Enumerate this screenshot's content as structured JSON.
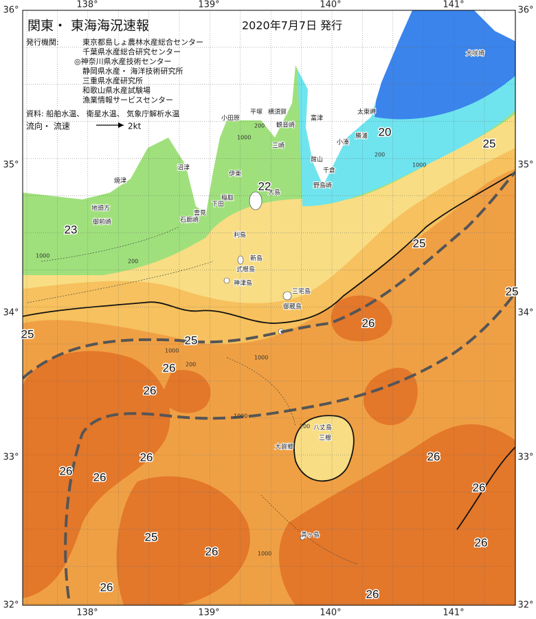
{
  "header": {
    "title": "関東・ 東海海況速報",
    "date": "2020年7月7日 発行",
    "issuer_label": "発行機関:",
    "issuers": [
      "東京都島しょ農林水産総合センター",
      "千葉県水産総合研究センター",
      "◎神奈川県水産技術センター",
      "静岡県水産・ 海洋技術研究所",
      "三重県水産研究所",
      "和歌山県水産試験場",
      "漁業情報サービスセンター"
    ],
    "sources": "資料: 船舶水温、 衛星水温、 気象庁解析水温",
    "legend_label": "流向・ 流速",
    "legend_speed": "2kt"
  },
  "longitude_labels": [
    "138°",
    "139°",
    "140°",
    "141°"
  ],
  "latitude_labels": [
    "36°",
    "35°",
    "34°",
    "33°",
    "32°"
  ],
  "isotherm_labels": [
    "20",
    "22",
    "23",
    "25",
    "25",
    "25",
    "25",
    "25",
    "26",
    "26",
    "26",
    "26",
    "26",
    "26",
    "26",
    "26",
    "25",
    "26",
    "26",
    "26",
    "26"
  ],
  "place_names": [
    "小田原",
    "平塚",
    "横須賀",
    "観音崎",
    "富津",
    "三崎",
    "小湊",
    "勝浦",
    "太東岬",
    "犬吠埼",
    "館山",
    "千倉",
    "野島崎",
    "伊東",
    "稲取",
    "下田",
    "雲見",
    "石廊崎",
    "沼津",
    "焼津",
    "地頭方",
    "御前崎",
    "大島",
    "利島",
    "新島",
    "式根島",
    "神津島",
    "三宅島",
    "御蔵島",
    "八丈島",
    "三根",
    "大賀郷",
    "青ヶ島"
  ],
  "depth_labels": [
    "200",
    "1000",
    "200",
    "1000",
    "200",
    "1000",
    "1000",
    "1000",
    "200",
    "1000",
    "200",
    "1000"
  ]
}
